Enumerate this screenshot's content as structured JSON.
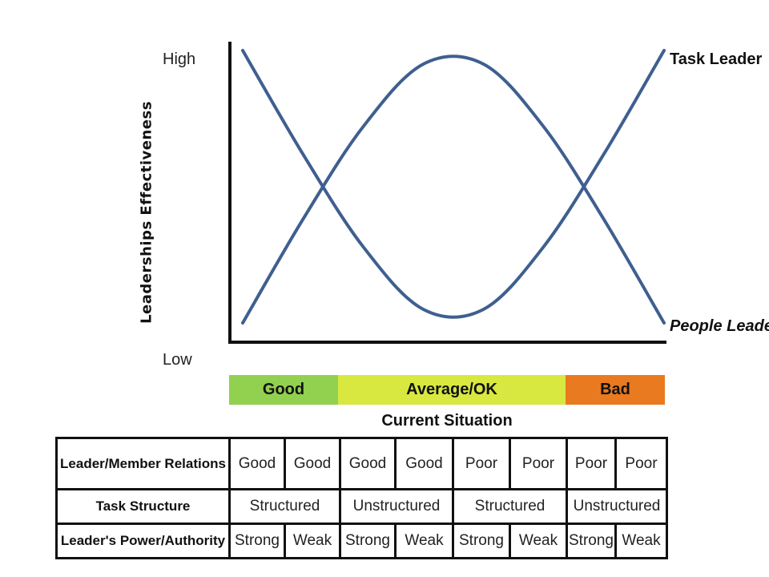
{
  "chart_data": {
    "type": "line",
    "title": "",
    "ylabel": "Leaderships Effectiveness",
    "xlabel": "Current Situation",
    "y_ticks": [
      "High",
      "Low"
    ],
    "ylim": [
      0,
      1
    ],
    "x": [
      1,
      2,
      3,
      4,
      5,
      6,
      7,
      8
    ],
    "series": [
      {
        "name": "Task Leader",
        "color": "#3f5f8f",
        "values": [
          1.0,
          0.62,
          0.28,
          0.05,
          0.05,
          0.28,
          0.62,
          1.0
        ]
      },
      {
        "name": "People Leader",
        "color": "#3f5f8f",
        "values": [
          0.0,
          0.38,
          0.72,
          0.95,
          0.95,
          0.72,
          0.38,
          0.0
        ]
      }
    ],
    "grid": false,
    "legend": "labels at right end of lines"
  },
  "situation_bands": [
    {
      "label": "Good",
      "color": "#92d050"
    },
    {
      "label": "Average/OK",
      "color": "#d8e840"
    },
    {
      "label": "Bad",
      "color": "#e97a1f"
    }
  ],
  "situation_caption": "Current Situation",
  "table": {
    "rows": [
      {
        "header": "Leader/Member Relations",
        "cells": [
          "Good",
          "Good",
          "Good",
          "Good",
          "Poor",
          "Poor",
          "Poor",
          "Poor"
        ]
      },
      {
        "header": "Task Structure",
        "cells": [
          "Structured",
          "Unstructured",
          "Structured",
          "Unstructured"
        ]
      },
      {
        "header": "Leader's Power/Authority",
        "cells": [
          "Strong",
          "Weak",
          "Strong",
          "Weak",
          "Strong",
          "Weak",
          "Strong",
          "Weak"
        ]
      }
    ]
  },
  "colors": {
    "line": "#3f5f8f",
    "axis": "#111111"
  }
}
